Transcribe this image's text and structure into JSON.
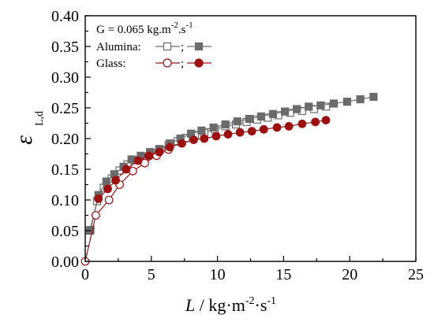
{
  "chart_data": {
    "type": "scatter",
    "xlabel": {
      "var": "L",
      "sep": " / ",
      "unit": "kg·m",
      "exp1": "-2",
      "mid": "·s",
      "exp2": "-1"
    },
    "ylabel": {
      "symbol": "ε",
      "subscript": "L,d"
    },
    "xlim": [
      0,
      25
    ],
    "ylim": [
      0,
      0.4
    ],
    "xticks": [
      0,
      5,
      10,
      15,
      20,
      25
    ],
    "yticks": [
      0.0,
      0.05,
      0.1,
      0.15,
      0.2,
      0.25,
      0.3,
      0.35,
      0.4
    ],
    "xtick_labels": [
      "0",
      "5",
      "10",
      "15",
      "20",
      "25"
    ],
    "ytick_labels": [
      "0.00",
      "0.05",
      "0.10",
      "0.15",
      "0.20",
      "0.25",
      "0.30",
      "0.35",
      "0.40"
    ],
    "grid": false,
    "legend": {
      "position": "top-left",
      "condition": {
        "prefix": "G = 0.065 kg.m",
        "exp1": "-2",
        "mid": ".s",
        "exp2": "-1"
      },
      "entries": [
        {
          "label": "Alumina:",
          "marker": "square",
          "color": "#6b6b6b"
        },
        {
          "label": "Glass:",
          "marker": "circle",
          "color": "#9b1111"
        }
      ],
      "separator": ";"
    },
    "series": [
      {
        "material": "Alumina",
        "marker": "square",
        "fill": "open",
        "color": "#6b6b6b",
        "x": [
          0.35,
          0.9,
          1.4,
          2.0,
          2.6,
          3.2,
          3.8,
          4.4,
          5.0,
          5.6,
          6.3,
          7.0,
          7.6,
          8.3,
          9.0,
          9.8,
          10.6,
          11.4,
          12.2,
          13.0,
          13.8,
          14.6,
          15.5,
          16.4,
          17.3,
          18.2
        ],
        "y": [
          0.05,
          0.098,
          0.12,
          0.135,
          0.148,
          0.158,
          0.165,
          0.17,
          0.176,
          0.182,
          0.189,
          0.196,
          0.201,
          0.206,
          0.21,
          0.215,
          0.22,
          0.223,
          0.227,
          0.231,
          0.234,
          0.238,
          0.242,
          0.245,
          0.248,
          0.252
        ]
      },
      {
        "material": "Alumina",
        "marker": "square",
        "fill": "filled",
        "color": "#6b6b6b",
        "x": [
          0.4,
          1.0,
          1.6,
          2.2,
          2.9,
          3.5,
          4.2,
          4.9,
          5.6,
          6.4,
          7.2,
          8.0,
          8.8,
          9.7,
          10.6,
          11.5,
          12.4,
          13.3,
          14.2,
          15.1,
          16.0,
          16.9,
          17.8,
          18.8,
          19.8,
          20.8,
          21.8
        ],
        "y": [
          0.051,
          0.108,
          0.13,
          0.142,
          0.154,
          0.166,
          0.172,
          0.178,
          0.183,
          0.192,
          0.2,
          0.208,
          0.213,
          0.218,
          0.223,
          0.228,
          0.232,
          0.236,
          0.24,
          0.244,
          0.248,
          0.252,
          0.254,
          0.257,
          0.26,
          0.264,
          0.268
        ]
      },
      {
        "material": "Glass",
        "marker": "circle",
        "fill": "open",
        "color": "#9b1111",
        "x": [
          0.0,
          0.8,
          1.8,
          2.6,
          3.6,
          4.5,
          5.4,
          6.3
        ],
        "y": [
          0.0,
          0.075,
          0.1,
          0.125,
          0.147,
          0.16,
          0.172,
          0.182
        ]
      },
      {
        "material": "Glass",
        "marker": "circle",
        "fill": "filled",
        "color": "#9b1111",
        "x": [
          1.0,
          1.7,
          2.3,
          3.1,
          4.0,
          4.8,
          5.6,
          6.4,
          7.3,
          8.2,
          9.0,
          9.9,
          10.8,
          11.7,
          12.6,
          13.5,
          14.5,
          15.4,
          16.4,
          17.4,
          18.2
        ],
        "y": [
          0.102,
          0.118,
          0.132,
          0.15,
          0.164,
          0.172,
          0.178,
          0.186,
          0.192,
          0.198,
          0.2,
          0.204,
          0.207,
          0.21,
          0.212,
          0.215,
          0.218,
          0.22,
          0.224,
          0.227,
          0.23
        ]
      }
    ]
  }
}
